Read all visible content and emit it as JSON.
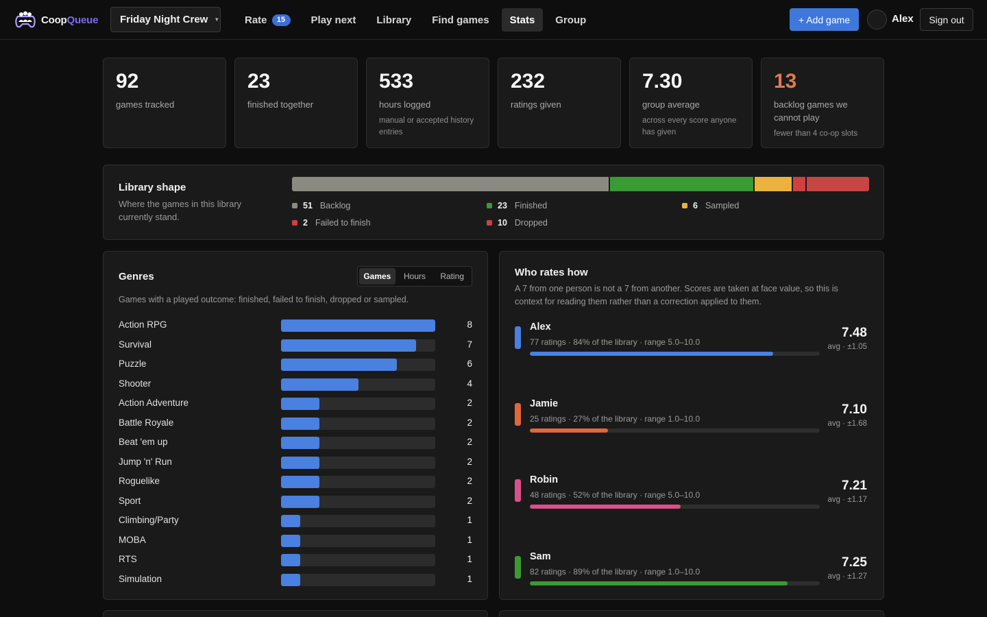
{
  "app": {
    "name_part1": "Coop",
    "name_part2": "Queue"
  },
  "group_selector": {
    "value": "Friday Night Crew"
  },
  "nav": [
    {
      "label": "Rate",
      "badge": "15"
    },
    {
      "label": "Play next"
    },
    {
      "label": "Library"
    },
    {
      "label": "Find games"
    },
    {
      "label": "Stats",
      "active": true
    },
    {
      "label": "Group"
    }
  ],
  "header": {
    "add_game": "+ Add game",
    "user": "Alex",
    "sign_out": "Sign out"
  },
  "stats": [
    {
      "value": "92",
      "label": "games tracked",
      "note": ""
    },
    {
      "value": "23",
      "label": "finished together",
      "note": ""
    },
    {
      "value": "533",
      "label": "hours logged",
      "note": "manual or accepted history entries"
    },
    {
      "value": "232",
      "label": "ratings given",
      "note": ""
    },
    {
      "value": "7.30",
      "label": "group average",
      "note": "across every score anyone has given"
    },
    {
      "value": "13",
      "label": "backlog games we cannot play",
      "note": "fewer than 4 co-op slots",
      "warn": true
    }
  ],
  "library_shape": {
    "title": "Library shape",
    "subtitle": "Where the games in this library currently stand.",
    "segments": [
      {
        "label": "Backlog",
        "count": 51,
        "color": "#8a8a80"
      },
      {
        "label": "Finished",
        "count": 23,
        "color": "#3a9a34"
      },
      {
        "label": "Sampled",
        "count": 6,
        "color": "#ecb23e"
      },
      {
        "label": "Failed to finish",
        "count": 2,
        "color": "#d04040"
      },
      {
        "label": "Dropped",
        "count": 10,
        "color": "#c84545"
      }
    ]
  },
  "genres": {
    "title": "Genres",
    "tabs": [
      "Games",
      "Hours",
      "Rating"
    ],
    "active_tab": "Games",
    "description": "Games with a played outcome: finished, failed to finish, dropped or sampled.",
    "max": 8,
    "items": [
      {
        "name": "Action RPG",
        "value": 8
      },
      {
        "name": "Survival",
        "value": 7
      },
      {
        "name": "Puzzle",
        "value": 6
      },
      {
        "name": "Shooter",
        "value": 4
      },
      {
        "name": "Action Adventure",
        "value": 2
      },
      {
        "name": "Battle Royale",
        "value": 2
      },
      {
        "name": "Beat 'em up",
        "value": 2
      },
      {
        "name": "Jump 'n' Run",
        "value": 2
      },
      {
        "name": "Roguelike",
        "value": 2
      },
      {
        "name": "Sport",
        "value": 2
      },
      {
        "name": "Climbing/Party",
        "value": 1
      },
      {
        "name": "MOBA",
        "value": 1
      },
      {
        "name": "RTS",
        "value": 1
      },
      {
        "name": "Simulation",
        "value": 1
      }
    ]
  },
  "raters": {
    "title": "Who rates how",
    "description": "A 7 from one person is not a 7 from another. Scores are taken at face value, so this is context for reading them rather than a correction applied to them.",
    "people": [
      {
        "name": "Alex",
        "meta": "77 ratings · 84% of the library · range 5.0–10.0",
        "coverage": 0.84,
        "avg": "7.48",
        "avg_sub": "avg · ±1.05",
        "color": "#4a80e0"
      },
      {
        "name": "Jamie",
        "meta": "25 ratings · 27% of the library · range 1.0–10.0",
        "coverage": 0.27,
        "avg": "7.10",
        "avg_sub": "avg · ±1.68",
        "color": "#e0673a"
      },
      {
        "name": "Robin",
        "meta": "48 ratings · 52% of the library · range 5.0–10.0",
        "coverage": 0.52,
        "avg": "7.21",
        "avg_sub": "avg · ±1.17",
        "color": "#d9508a"
      },
      {
        "name": "Sam",
        "meta": "82 ratings · 89% of the library · range 1.0–10.0",
        "coverage": 0.89,
        "avg": "7.25",
        "avg_sub": "avg · ±1.27",
        "color": "#3a9a34"
      }
    ]
  }
}
